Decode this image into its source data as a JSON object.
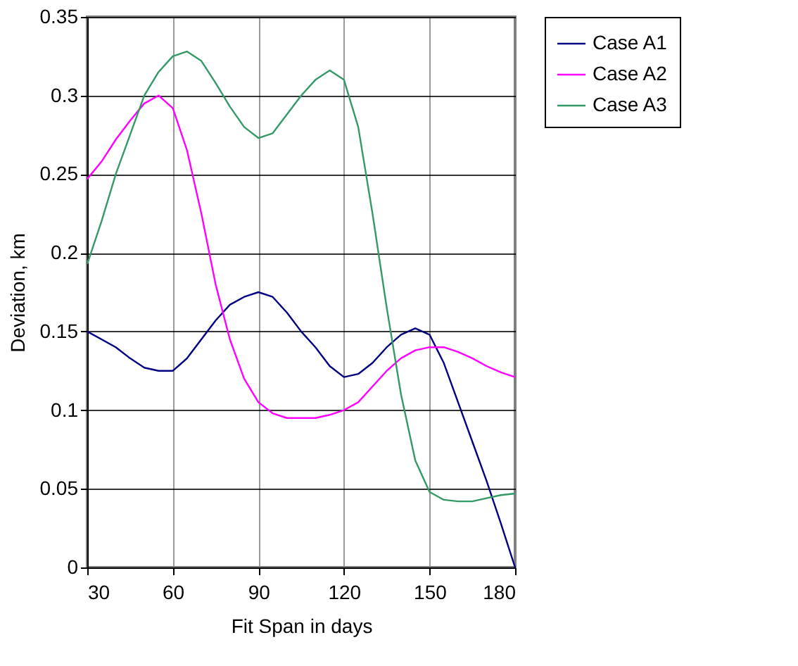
{
  "chart_data": {
    "type": "line",
    "xlabel": "Fit Span in days",
    "ylabel": "Deviation, km",
    "x": [
      30,
      35,
      40,
      45,
      50,
      55,
      60,
      65,
      70,
      75,
      80,
      85,
      90,
      95,
      100,
      105,
      110,
      115,
      120,
      125,
      130,
      135,
      140,
      145,
      150,
      155,
      160,
      165,
      170,
      175,
      180
    ],
    "series": [
      {
        "name": "Case A1",
        "color": "#000080",
        "values": [
          0.15,
          0.145,
          0.14,
          0.133,
          0.127,
          0.125,
          0.125,
          0.133,
          0.145,
          0.157,
          0.167,
          0.172,
          0.175,
          0.172,
          0.162,
          0.15,
          0.14,
          0.128,
          0.121,
          0.123,
          0.13,
          0.14,
          0.148,
          0.152,
          0.148,
          0.13,
          0.105,
          0.08,
          0.055,
          0.028,
          0
        ]
      },
      {
        "name": "Case A2",
        "color": "#ff00ff",
        "values": [
          0.247,
          0.258,
          0.272,
          0.284,
          0.295,
          0.3,
          0.292,
          0.265,
          0.225,
          0.18,
          0.145,
          0.12,
          0.105,
          0.098,
          0.095,
          0.095,
          0.095,
          0.097,
          0.1,
          0.105,
          0.115,
          0.125,
          0.133,
          0.138,
          0.14,
          0.14,
          0.137,
          0.133,
          0.128,
          0.124,
          0.121
        ]
      },
      {
        "name": "Case A3",
        "color": "#339966",
        "values": [
          0.193,
          0.22,
          0.25,
          0.275,
          0.3,
          0.315,
          0.325,
          0.328,
          0.322,
          0.308,
          0.293,
          0.28,
          0.273,
          0.276,
          0.288,
          0.3,
          0.31,
          0.316,
          0.31,
          0.28,
          0.225,
          0.165,
          0.11,
          0.068,
          0.048,
          0.043,
          0.042,
          0.042,
          0.044,
          0.046,
          0.047
        ]
      }
    ],
    "xlim": [
      30,
      180
    ],
    "xticks": [
      30,
      60,
      90,
      120,
      150,
      180
    ],
    "ylim": [
      0,
      0.35
    ],
    "yticks": [
      0,
      0.05,
      0.1,
      0.15,
      0.2,
      0.25,
      0.3,
      0.35
    ],
    "grid": true,
    "legend": "right",
    "marker": "none",
    "line_style": "solid"
  }
}
